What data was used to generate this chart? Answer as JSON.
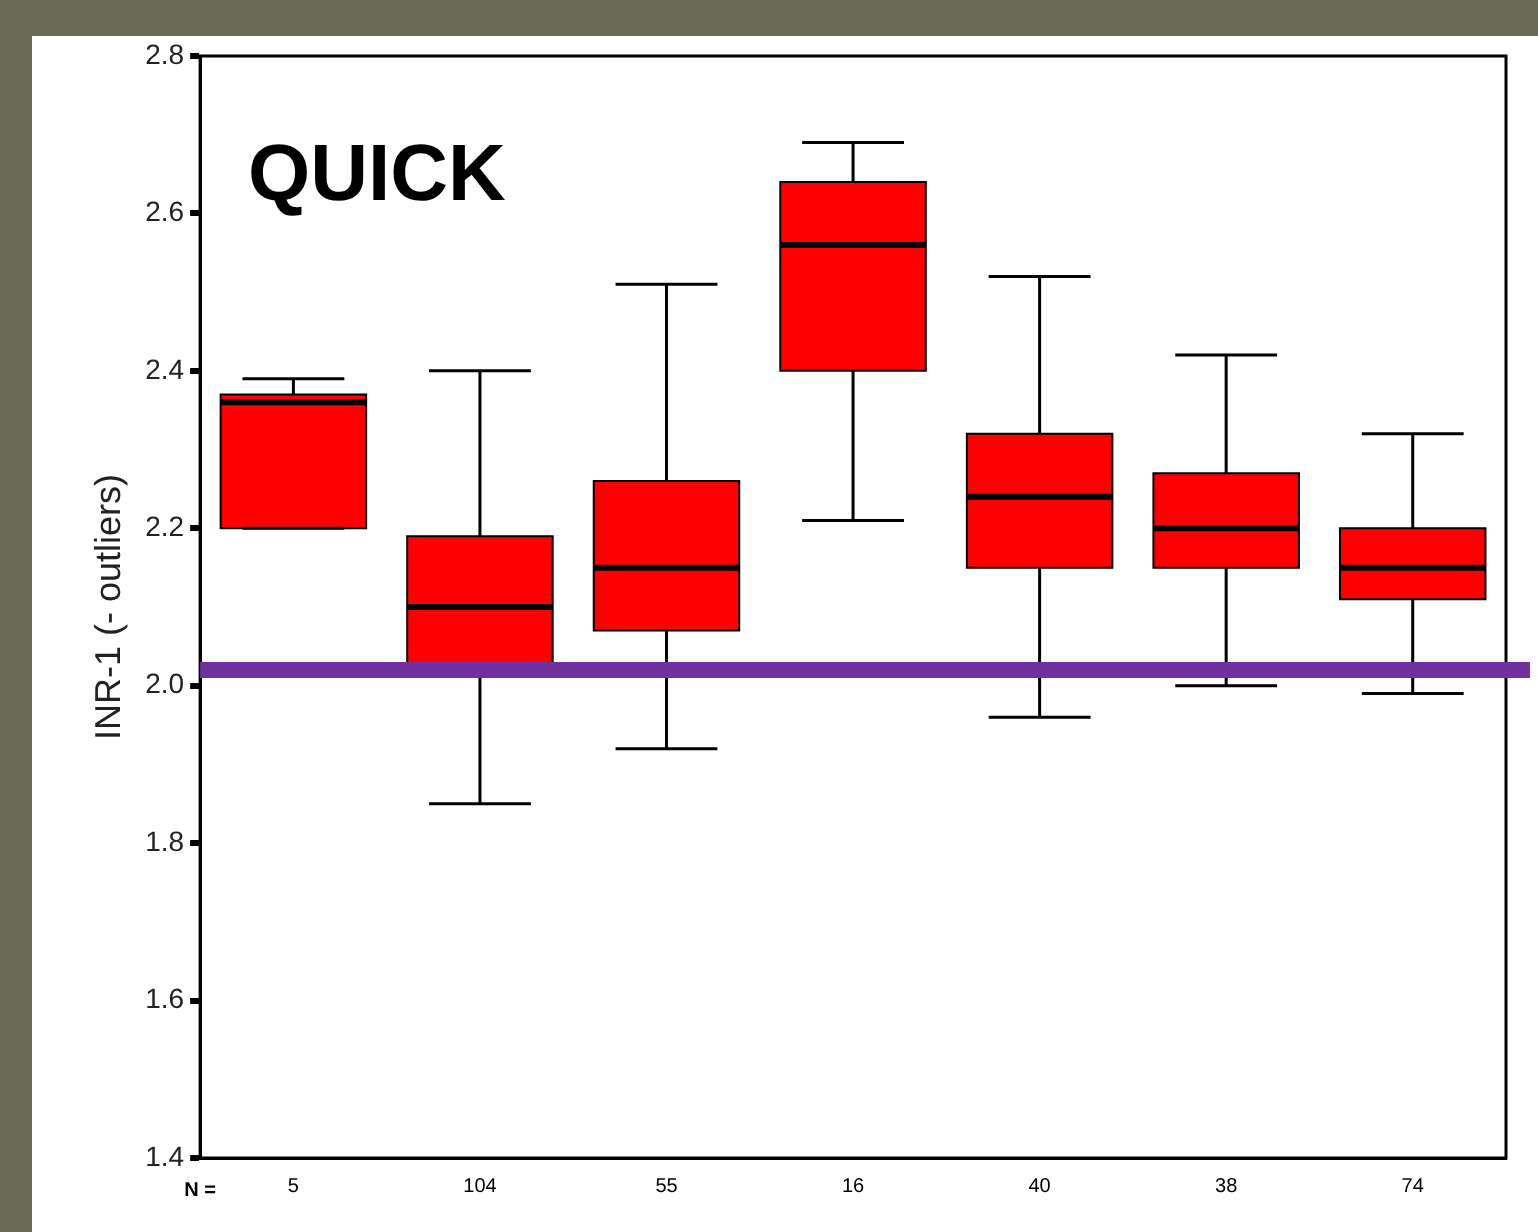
{
  "chart_data": {
    "type": "box",
    "title": "QUICK",
    "ylabel": "INR-1 (- outliers)",
    "categories": [
      "5",
      "104",
      "55",
      "16",
      "40",
      "38",
      "74"
    ],
    "color": "#ff0000",
    "boxes": [
      {
        "low": 2.2,
        "q1": 2.2,
        "median": 2.36,
        "q3": 2.37,
        "high": 2.39
      },
      {
        "low": 1.85,
        "q1": 2.02,
        "median": 2.1,
        "q3": 2.19,
        "high": 2.4
      },
      {
        "low": 1.92,
        "q1": 2.07,
        "median": 2.15,
        "q3": 2.26,
        "high": 2.51
      },
      {
        "low": 2.21,
        "q1": 2.4,
        "median": 2.56,
        "q3": 2.64,
        "high": 2.69
      },
      {
        "low": 1.96,
        "q1": 2.15,
        "median": 2.24,
        "q3": 2.32,
        "high": 2.52
      },
      {
        "low": 2.0,
        "q1": 2.15,
        "median": 2.2,
        "q3": 2.27,
        "high": 2.42
      },
      {
        "low": 1.99,
        "q1": 2.11,
        "median": 2.15,
        "q3": 2.2,
        "high": 2.32
      }
    ],
    "ylim": [
      1.4,
      2.8
    ],
    "yticks": [
      1.4,
      1.6,
      1.8,
      {
        "value": 2,
        "label": "2.0"
      },
      2.2,
      2.4,
      2.6,
      2.8
    ],
    "grid": false,
    "legend": false,
    "ref_lines": [
      {
        "axis": "y",
        "value": 2.02,
        "color": "#7030a0"
      }
    ],
    "annotations": [
      "N ="
    ]
  }
}
